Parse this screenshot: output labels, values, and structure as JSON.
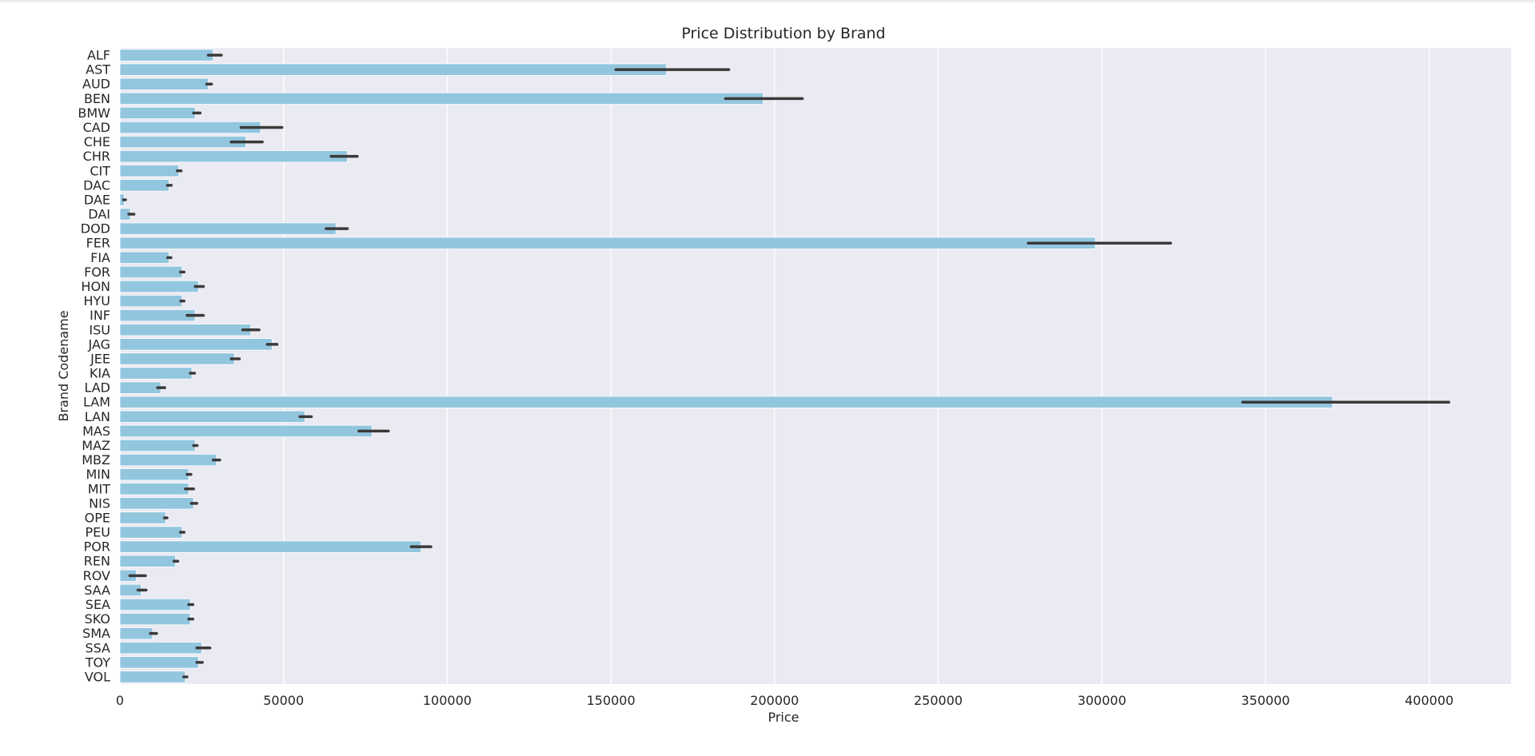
{
  "chart_data": {
    "type": "bar",
    "orientation": "horizontal",
    "title": "Price Distribution by Brand",
    "xlabel": "Price",
    "ylabel": "Brand Codename",
    "xlim": [
      0,
      425000
    ],
    "xticks": [
      0,
      50000,
      100000,
      150000,
      200000,
      250000,
      300000,
      350000,
      400000
    ],
    "grid": true,
    "bar_color": "#92c6df",
    "errorbar_color": "#3a3a3a",
    "background_color": "#eaeaf2",
    "categories": [
      "ALF",
      "AST",
      "AUD",
      "BEN",
      "BMW",
      "CAD",
      "CHE",
      "CHR",
      "CIT",
      "DAC",
      "DAE",
      "DAI",
      "DOD",
      "FER",
      "FIA",
      "FOR",
      "HON",
      "HYU",
      "INF",
      "ISU",
      "JAG",
      "JEE",
      "KIA",
      "LAD",
      "LAM",
      "LAN",
      "MAS",
      "MAZ",
      "MBZ",
      "MIN",
      "MIT",
      "NIS",
      "OPE",
      "PEU",
      "POR",
      "REN",
      "ROV",
      "SAA",
      "SEA",
      "SKO",
      "SMA",
      "SSA",
      "TOY",
      "VOL"
    ],
    "values": [
      28500,
      167000,
      27000,
      196500,
      23000,
      43000,
      38500,
      69500,
      18000,
      15000,
      1300,
      3200,
      66000,
      298000,
      15000,
      19000,
      24000,
      19000,
      23000,
      40000,
      46500,
      35000,
      22000,
      12500,
      370500,
      56500,
      77000,
      23000,
      29500,
      21000,
      21000,
      22500,
      14000,
      19000,
      92000,
      17000,
      5000,
      6500,
      21500,
      21500,
      10000,
      25000,
      24000,
      20000
    ],
    "error_low": [
      27000,
      151500,
      26500,
      185000,
      22500,
      37000,
      34000,
      64500,
      17500,
      14500,
      1100,
      2700,
      63000,
      277500,
      14600,
      18500,
      23000,
      18600,
      20500,
      37500,
      45000,
      34000,
      21500,
      11500,
      343000,
      55000,
      73000,
      22500,
      28500,
      20500,
      20000,
      21800,
      13600,
      18500,
      89000,
      16500,
      3000,
      5500,
      21000,
      21000,
      9300,
      23500,
      23500,
      19500
    ],
    "error_high": [
      31000,
      186000,
      28000,
      208500,
      24500,
      49500,
      43500,
      72500,
      18700,
      15700,
      1700,
      4300,
      69500,
      321000,
      15600,
      19600,
      25500,
      19600,
      25500,
      42500,
      48000,
      36500,
      22800,
      13700,
      406000,
      58500,
      82000,
      23600,
      30500,
      21700,
      22500,
      23500,
      14400,
      19600,
      95000,
      17700,
      7800,
      8000,
      22300,
      22300,
      11200,
      27500,
      25200,
      20500
    ]
  }
}
